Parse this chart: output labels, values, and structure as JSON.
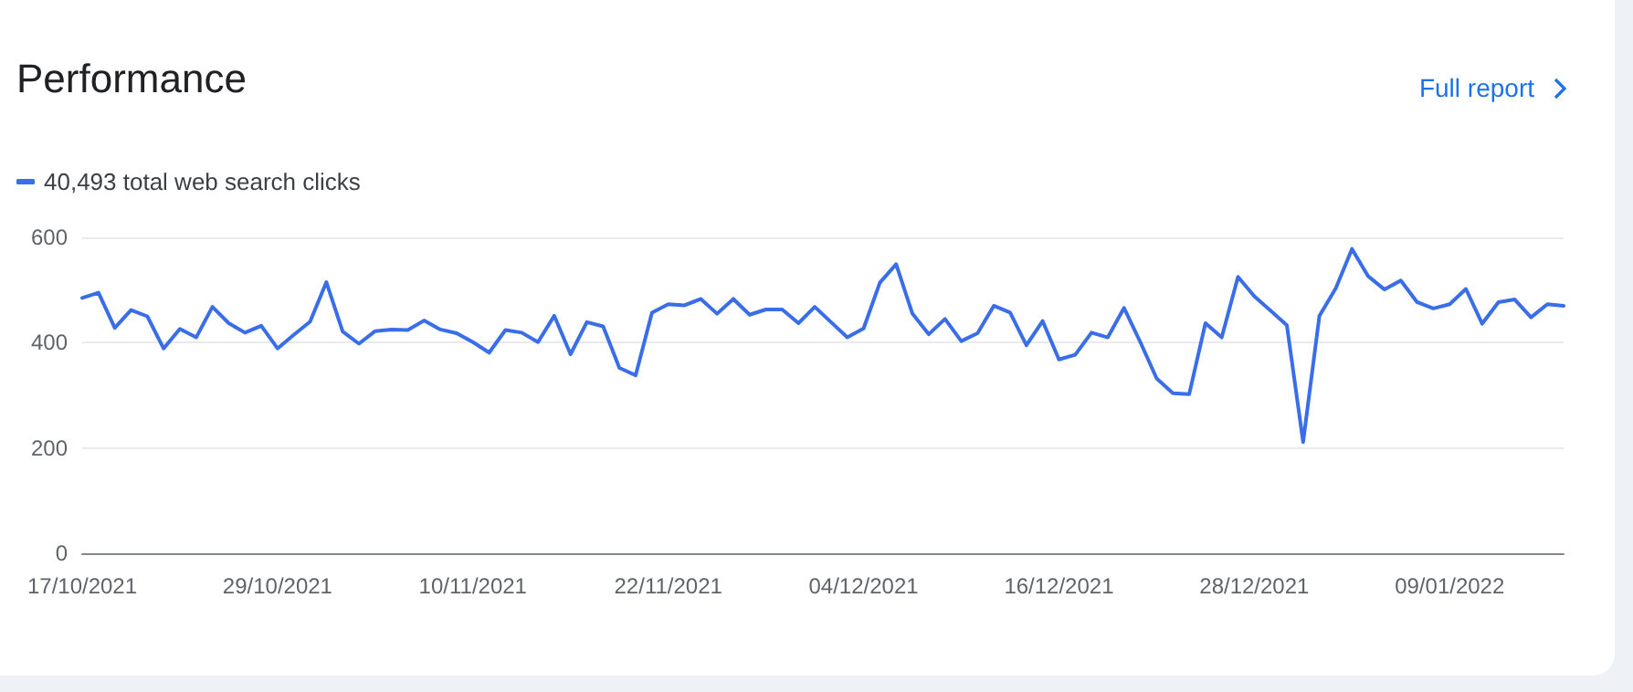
{
  "chart_data": {
    "type": "line",
    "title": "Performance",
    "annotations": [
      "Full report"
    ],
    "x": [
      "2021-10-17",
      "2021-10-18",
      "2021-10-19",
      "2021-10-20",
      "2021-10-21",
      "2021-10-22",
      "2021-10-23",
      "2021-10-24",
      "2021-10-25",
      "2021-10-26",
      "2021-10-27",
      "2021-10-28",
      "2021-10-29",
      "2021-10-30",
      "2021-10-31",
      "2021-11-01",
      "2021-11-02",
      "2021-11-03",
      "2021-11-04",
      "2021-11-05",
      "2021-11-06",
      "2021-11-07",
      "2021-11-08",
      "2021-11-09",
      "2021-11-10",
      "2021-11-11",
      "2021-11-12",
      "2021-11-13",
      "2021-11-14",
      "2021-11-15",
      "2021-11-16",
      "2021-11-17",
      "2021-11-18",
      "2021-11-19",
      "2021-11-20",
      "2021-11-21",
      "2021-11-22",
      "2021-11-23",
      "2021-11-24",
      "2021-11-25",
      "2021-11-26",
      "2021-11-27",
      "2021-11-28",
      "2021-11-29",
      "2021-11-30",
      "2021-12-01",
      "2021-12-02",
      "2021-12-03",
      "2021-12-04",
      "2021-12-05",
      "2021-12-06",
      "2021-12-07",
      "2021-12-08",
      "2021-12-09",
      "2021-12-10",
      "2021-12-11",
      "2021-12-12",
      "2021-12-13",
      "2021-12-14",
      "2021-12-15",
      "2021-12-16",
      "2021-12-17",
      "2021-12-18",
      "2021-12-19",
      "2021-12-20",
      "2021-12-21",
      "2021-12-22",
      "2021-12-23",
      "2021-12-24",
      "2021-12-25",
      "2021-12-26",
      "2021-12-27",
      "2021-12-28",
      "2021-12-29",
      "2021-12-30",
      "2021-12-31",
      "2022-01-01",
      "2022-01-02",
      "2022-01-03",
      "2022-01-04",
      "2022-01-05",
      "2022-01-06",
      "2022-01-07",
      "2022-01-08",
      "2022-01-09",
      "2022-01-10",
      "2022-01-11",
      "2022-01-12",
      "2022-01-13",
      "2022-01-14",
      "2022-01-15",
      "2022-01-16"
    ],
    "series": [
      {
        "name": "40,493 total web search clicks",
        "color": "#3a6ee8",
        "values": [
          485,
          495,
          428,
          462,
          450,
          389,
          426,
          410,
          468,
          437,
          419,
          432,
          389,
          415,
          440,
          515,
          421,
          398,
          422,
          425,
          424,
          442,
          425,
          418,
          401,
          381,
          424,
          419,
          401,
          451,
          378,
          439,
          431,
          352,
          338,
          457,
          473,
          471,
          483,
          455,
          483,
          453,
          463,
          463,
          437,
          468,
          439,
          410,
          427,
          514,
          549,
          455,
          416,
          445,
          403,
          418,
          470,
          457,
          395,
          441,
          368,
          377,
          419,
          410,
          466,
          401,
          332,
          304,
          302,
          437,
          410,
          525,
          488,
          461,
          433,
          211,
          451,
          503,
          578,
          526,
          501,
          518,
          477,
          465,
          473,
          502,
          436,
          477,
          482,
          448,
          473,
          470
        ]
      }
    ],
    "xlim": [
      "2021-10-17",
      "2022-01-16"
    ],
    "xticks": [
      {
        "value": "2021-10-17",
        "label": "17/10/2021"
      },
      {
        "value": "2021-10-29",
        "label": "29/10/2021"
      },
      {
        "value": "2021-11-10",
        "label": "10/11/2021"
      },
      {
        "value": "2021-11-22",
        "label": "22/11/2021"
      },
      {
        "value": "2021-12-04",
        "label": "04/12/2021"
      },
      {
        "value": "2021-12-16",
        "label": "16/12/2021"
      },
      {
        "value": "2021-12-28",
        "label": "28/12/2021"
      },
      {
        "value": "2022-01-09",
        "label": "09/01/2022"
      }
    ],
    "ylim": [
      0,
      600
    ],
    "yticks": [
      0,
      200,
      400,
      600
    ],
    "grid": "y",
    "legend": "top left",
    "marker": "none",
    "line_style": "solid"
  }
}
